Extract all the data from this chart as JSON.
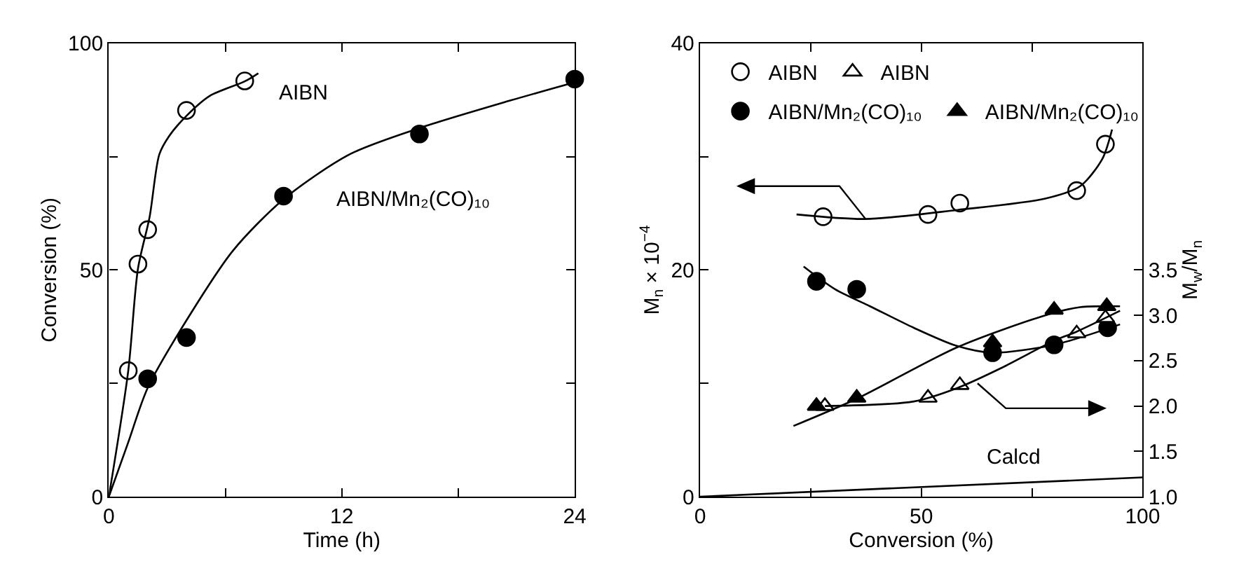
{
  "chart_data": [
    {
      "type": "scatter",
      "xlabel": "Time (h)",
      "ylabel": "Conversion (%)",
      "xlim": [
        0,
        24
      ],
      "ylim": [
        0,
        100
      ],
      "xticks": [
        0,
        {
          "value": 6,
          "label": null
        },
        12,
        {
          "value": 18,
          "label": null
        },
        24
      ],
      "yticks": [
        0,
        {
          "value": 25,
          "label": null
        },
        50,
        {
          "value": 75,
          "label": null
        },
        100
      ],
      "grid": false,
      "legend": false,
      "series": [
        {
          "name": "AIBN",
          "marker": "circle",
          "color": "#ffffff",
          "x": [
            1.0,
            1.5,
            2.0,
            4.0,
            7.0
          ],
          "values": [
            27.8,
            51.3,
            58.9,
            85.2,
            91.7
          ]
        },
        {
          "name": "AIBN/Mn₂(CO)₁₀",
          "marker": "circle",
          "color": "#000000",
          "x": [
            2.0,
            4.0,
            9.0,
            16.0,
            24.0
          ],
          "values": [
            26.0,
            35.1,
            66.3,
            80.0,
            92.1
          ]
        },
        {
          "type": "line",
          "color": "#000000",
          "x": [
            0,
            1.0,
            1.5,
            2.1,
            2.6,
            3.1,
            4.0,
            5.2,
            7.0,
            7.7
          ],
          "values": [
            0,
            27.8,
            50.3,
            61.7,
            75.5,
            79.5,
            84.0,
            88.4,
            91.6,
            93.4
          ]
        },
        {
          "type": "line",
          "color": "#000000",
          "x": [
            0,
            1,
            2,
            4,
            6.4,
            9,
            12.4,
            16,
            20.7,
            24
          ],
          "values": [
            0,
            12,
            24,
            38.9,
            54.3,
            65.6,
            75.5,
            81.3,
            87.4,
            91.4
          ]
        }
      ]
    },
    {
      "type": "scatter",
      "xlabel": "Conversion (%)",
      "ylabel": "M$_{n}$ × 10$^{−4}$",
      "y2label": "M$_{w}$/M$_{n}$",
      "xlim": [
        0,
        100
      ],
      "ylim": [
        0,
        40
      ],
      "y2lim": [
        1.0,
        6.0
      ],
      "xticks": [
        0,
        {
          "value": 25,
          "label": null
        },
        50,
        {
          "value": 75,
          "label": null
        },
        100
      ],
      "yticks": [
        0,
        {
          "value": 10,
          "label": null
        },
        20,
        {
          "value": 30,
          "label": null
        },
        40
      ],
      "y2ticks": [
        {
          "value": 1.0,
          "label": "1.0"
        },
        1.5,
        {
          "value": 2.0,
          "label": "2.0"
        },
        2.5,
        {
          "value": 3.0,
          "label": "3.0"
        },
        3.5
      ],
      "grid": false,
      "legend": "top left",
      "series": [
        {
          "name": "AIBN",
          "marker": "circle",
          "color": "#ffffff",
          "x": [
            27.8,
            51.5,
            58.7,
            85.1,
            91.6
          ],
          "values": [
            24.7,
            24.9,
            25.9,
            27.0,
            31.1
          ]
        },
        {
          "name": "AIBN",
          "marker": "triangle",
          "color": "#ffffff",
          "axis": "y2",
          "x": [
            28.2,
            51.5,
            58.7,
            85.1,
            91.6
          ],
          "values": [
            2.0,
            2.09,
            2.23,
            2.8,
            2.97
          ]
        },
        {
          "name": "AIBN/Mn₂(CO)₁₀",
          "marker": "circle",
          "color": "#000000",
          "x": [
            26.3,
            35.4,
            66.1,
            80.0,
            92.1
          ],
          "values": [
            19.0,
            18.3,
            12.7,
            13.4,
            14.9
          ]
        },
        {
          "name": "AIBN/Mn₂(CO)₁₀",
          "marker": "triangle",
          "color": "#000000",
          "axis": "y2",
          "x": [
            26.3,
            35.4,
            66.1,
            80.0,
            91.9
          ],
          "values": [
            2.0,
            2.09,
            2.7,
            3.06,
            3.1
          ]
        },
        {
          "type": "line",
          "color": "#000000",
          "x": [
            21.8,
            37.4,
            58.2,
            78.0,
            85.9,
            90.9,
            93.1
          ],
          "values": [
            24.9,
            24.5,
            25.3,
            26.3,
            27.4,
            29.8,
            32.4
          ]
        },
        {
          "type": "line",
          "color": "#000000",
          "x": [
            23.4,
            30.5,
            38.4,
            48.3,
            58.0,
            66.0,
            80.0,
            94.9
          ],
          "values": [
            20.3,
            18.3,
            16.8,
            14.9,
            13.3,
            12.7,
            13.4,
            15.2
          ]
        },
        {
          "type": "line",
          "color": "#000000",
          "axis": "y2",
          "x": [
            21.1,
            35.4,
            58.2,
            78.0,
            85.9,
            94.9
          ],
          "values": [
            1.78,
            2.08,
            2.65,
            3.0,
            3.09,
            3.1
          ]
        },
        {
          "type": "line",
          "color": "#000000",
          "axis": "y2",
          "x": [
            28.2,
            48.3,
            58.2,
            68.1,
            80.0,
            85.1,
            94.9
          ],
          "values": [
            2.0,
            2.05,
            2.2,
            2.42,
            2.72,
            2.82,
            3.05
          ]
        },
        {
          "name": "Calcd",
          "type": "line",
          "color": "#000000",
          "x": [
            0,
            100
          ],
          "values": [
            0,
            1.7
          ]
        }
      ]
    }
  ]
}
